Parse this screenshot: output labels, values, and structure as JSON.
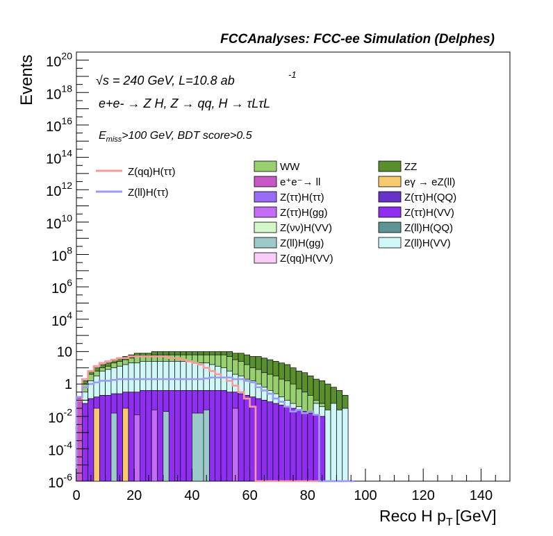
{
  "chart_data": {
    "type": "bar",
    "title": "FCCAnalyses: FCC-ee Simulation (Delphes)",
    "xlabel": "Reco H p",
    "xlabel_sub": "T",
    "xlabel_unit": "[GeV]",
    "ylabel": "Events",
    "xlim": [
      0,
      150
    ],
    "ylim_exponent": [
      -6,
      20.5
    ],
    "log_y": true,
    "x_ticks": [
      "0",
      "20",
      "40",
      "60",
      "80",
      "100",
      "120",
      "140"
    ],
    "y_tick_exponents": [
      "-6",
      "-4",
      "-2",
      "",
      "",
      "4",
      "6",
      "8",
      "10",
      "12",
      "14",
      "16",
      "18",
      "20"
    ],
    "y_tick_plain": {
      "0": "1",
      "2": "10"
    },
    "annotations": {
      "sqrt": "√",
      "energy": "s = 240 GeV, L=10.8 ab",
      "energy_sup": "-1",
      "process": "e+e- → Z H, Z → qq, H → τLτL",
      "cut_E": "E",
      "cut_sub": "miss",
      "cut_rest": ">100 GeV, BDT score>0.5"
    },
    "signal_legend": [
      {
        "label": "Z(qq)H(ττ)",
        "color": "#f59a9a"
      },
      {
        "label": "Z(ll)H(ττ)",
        "color": "#9a9cf4"
      }
    ],
    "background_legend": [
      {
        "label": "WW",
        "color": "#98d070"
      },
      {
        "label": "ZZ",
        "color": "#5a8f2e"
      },
      {
        "label": "e⁺e⁻→ ll",
        "color": "#c857c8"
      },
      {
        "label": "eγ → eZ(ll)",
        "color": "#f7ca6d"
      },
      {
        "label": "Z(ττ)H(ττ)",
        "color": "#9a6bf7"
      },
      {
        "label": "Z(ττ)H(QQ)",
        "color": "#6533c7"
      },
      {
        "label": "Z(ττ)H(gg)",
        "color": "#c46cf7"
      },
      {
        "label": "Z(ττ)H(VV)",
        "color": "#8f2ef0"
      },
      {
        "label": "Z(νν)H(VV)",
        "color": "#d3f7c7"
      },
      {
        "label": "Z(ll)H(QQ)",
        "color": "#5f9494"
      },
      {
        "label": "Z(ll)H(gg)",
        "color": "#9ccaca"
      },
      {
        "label": "Z(ll)H(VV)",
        "color": "#cff7f7"
      },
      {
        "label": "Z(qq)H(VV)",
        "color": "#f7cdf7"
      }
    ],
    "bin_width": 2,
    "stack_total_log10": [
      -1.0,
      0.2,
      0.8,
      1.0,
      1.2,
      1.3,
      1.5,
      1.6,
      1.7,
      1.8,
      1.9,
      1.9,
      1.9,
      2.0,
      2.0,
      2.0,
      2.0,
      2.0,
      2.0,
      2.0,
      2.0,
      2.0,
      2.0,
      2.0,
      2.0,
      2.0,
      2.0,
      1.9,
      1.9,
      1.8,
      1.7,
      1.7,
      1.6,
      1.5,
      1.4,
      1.3,
      1.2,
      1.0,
      0.8,
      0.7,
      0.5,
      0.3,
      0.2,
      0.0,
      -0.2,
      -0.4,
      -0.7,
      -999
    ],
    "zz_top_log10": [
      -1.0,
      0.2,
      0.8,
      1.0,
      1.2,
      1.3,
      1.5,
      1.6,
      1.7,
      1.8,
      1.9,
      1.9,
      1.9,
      2.0,
      2.0,
      2.0,
      2.0,
      2.0,
      2.0,
      2.0,
      2.0,
      2.0,
      2.0,
      2.0,
      2.0,
      2.0,
      2.0,
      1.9,
      1.9,
      1.8,
      1.7,
      1.7,
      1.6,
      1.5,
      1.4,
      1.3,
      1.2,
      1.0,
      0.8,
      0.7,
      0.5,
      0.3,
      0.2,
      0.0,
      -0.2,
      -0.4,
      -0.7,
      -999
    ],
    "ww_top_log10": [
      -1.2,
      0.0,
      0.6,
      0.8,
      1.0,
      1.1,
      1.3,
      1.4,
      1.5,
      1.6,
      1.7,
      1.7,
      1.7,
      1.8,
      1.8,
      1.8,
      1.8,
      1.8,
      1.8,
      1.8,
      1.8,
      1.8,
      1.8,
      1.8,
      1.8,
      1.8,
      1.7,
      1.5,
      1.4,
      1.2,
      1.0,
      0.9,
      0.7,
      0.6,
      0.5,
      0.3,
      0.2,
      0.0,
      -0.3,
      -0.5,
      -0.7,
      -1.0,
      -1.2,
      -999,
      -999,
      -999,
      -999,
      -999
    ],
    "mid_top_log10": [
      -1.5,
      -0.5,
      0.2,
      0.5,
      0.8,
      0.9,
      1.0,
      1.1,
      1.2,
      1.3,
      1.3,
      1.4,
      1.4,
      1.4,
      1.4,
      1.4,
      1.4,
      1.4,
      1.4,
      1.4,
      1.3,
      1.3,
      1.3,
      1.2,
      1.1,
      1.0,
      0.8,
      0.6,
      0.5,
      0.3,
      0.2,
      0.0,
      -0.2,
      -0.4,
      -0.6,
      -0.8,
      -1.0,
      -1.2,
      -1.4,
      -1.7,
      -999,
      -1.2,
      -1.4,
      -1.6,
      -1.5,
      -1.6,
      -1.5,
      -999
    ],
    "violet_top_log10": [
      -1.5,
      -1.2,
      -0.9,
      -0.8,
      -0.7,
      -0.7,
      -0.6,
      -0.6,
      -0.5,
      -0.5,
      -0.5,
      -0.4,
      -0.4,
      -0.4,
      -0.4,
      -0.4,
      -0.4,
      -0.4,
      -0.4,
      -0.4,
      -0.4,
      -0.4,
      -0.4,
      -0.4,
      -0.4,
      -0.4,
      -0.5,
      -0.5,
      -0.6,
      -0.7,
      -0.8,
      -0.9,
      -1.0,
      -1.1,
      -1.2,
      -1.3,
      -1.4,
      -1.5,
      -1.6,
      -1.7,
      -1.8,
      -1.9,
      -2.0,
      -999,
      -999,
      -999,
      -999,
      -999
    ],
    "signal_qq_log10": [
      -1.0,
      0.3,
      0.8,
      1.1,
      1.3,
      1.4,
      1.5,
      1.6,
      1.6,
      1.7,
      1.7,
      1.7,
      1.7,
      1.7,
      1.7,
      1.7,
      1.6,
      1.6,
      1.5,
      1.4,
      1.3,
      1.2,
      1.0,
      0.8,
      0.6,
      0.4,
      0.2,
      -0.1,
      -0.5,
      -0.9,
      -1.4,
      -6.0,
      -6.0,
      -6.0,
      -6.0,
      -6.0,
      -6.0,
      -6.0,
      -6.0,
      -6.0,
      -6.0,
      -6.0,
      -6.0,
      -6.0,
      -6.0,
      -6.0,
      -6.0,
      -6.0
    ],
    "signal_ll_log10": [
      -0.8,
      -0.2,
      0.0,
      0.1,
      0.2,
      0.2,
      0.25,
      0.3,
      0.3,
      0.3,
      0.3,
      0.3,
      0.3,
      0.3,
      0.3,
      0.3,
      0.3,
      0.3,
      0.3,
      0.3,
      0.3,
      0.3,
      0.35,
      0.4,
      0.4,
      0.4,
      0.4,
      0.3,
      0.3,
      0.2,
      0.1,
      -0.2,
      -0.4,
      -0.6,
      -0.9,
      -1.1,
      -1.4,
      -1.7,
      -1.6,
      -1.8,
      -1.7,
      -1.9,
      -6.0,
      -6.0,
      -6.0,
      -6.0,
      -6.0,
      -6.0
    ]
  }
}
